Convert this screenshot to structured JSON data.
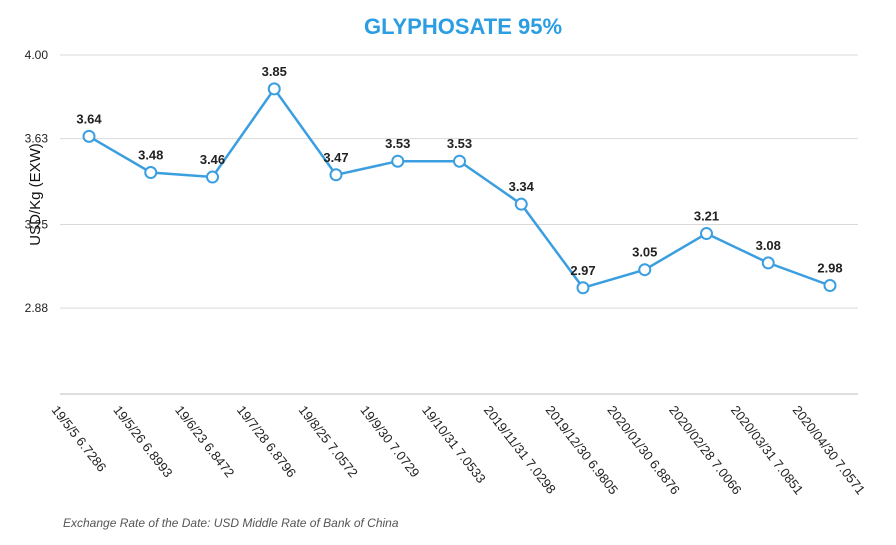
{
  "chart_data": {
    "type": "line",
    "title": "GLYPHOSATE 95%",
    "ylabel": "USD/Kg    (EXW)",
    "xlabel": "",
    "categories": [
      "19/5/5 6.7286",
      "19/5/26 6.8993",
      "19/6/23 6.8472",
      "19/7/28 6.8796",
      "19/8/25 7.0572",
      "19/9/30 7.0729",
      "19/10/31 7.0533",
      "2019/11/31 7.0298",
      "2019/12/30 6.9805",
      "2020/01/30 6.8876",
      "2020/02/28 7.0066",
      "2020/03/31 7.0851",
      "2020/04/30 7.0571"
    ],
    "series": [
      {
        "values": [
          3.64,
          3.48,
          3.46,
          3.85,
          3.47,
          3.53,
          3.53,
          3.34,
          2.97,
          3.05,
          3.21,
          3.08,
          2.98
        ],
        "labels": [
          "3.64",
          "3.48",
          "3.46",
          "3.85",
          "3.47",
          "3.53",
          "3.53",
          "3.34",
          "2.97",
          "3.05",
          "3.21",
          "3.08",
          "2.98"
        ]
      }
    ],
    "yticks": [
      2.5,
      2.88,
      3.25,
      3.63,
      4.0
    ],
    "ytick_labels": [
      "",
      "2.88",
      "3.25",
      "3.63",
      "4.00"
    ],
    "ylim": [
      2.5,
      4.0
    ],
    "grid": true,
    "legend": "none",
    "colors": {
      "line": "#3a9ee0",
      "title": "#2b9de3",
      "grid": "#d9d9d9"
    }
  },
  "footnote": "Exchange Rate of the Date: USD Middle Rate of Bank of China"
}
